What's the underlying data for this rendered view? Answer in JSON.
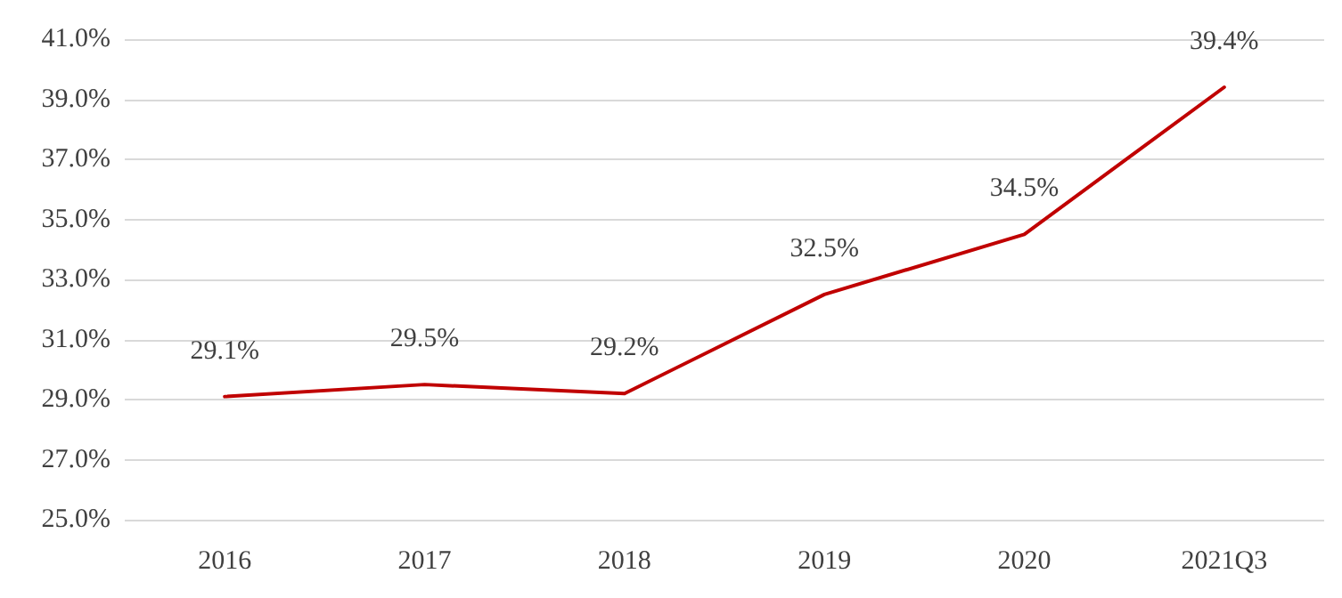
{
  "chart_data": {
    "type": "line",
    "categories": [
      "2016",
      "2017",
      "2018",
      "2019",
      "2020",
      "2021Q3"
    ],
    "series": [
      {
        "color": "#c00000",
        "values": [
          29.1,
          29.5,
          29.2,
          32.5,
          34.5,
          39.4
        ],
        "value_labels": [
          "29.1%",
          "29.5%",
          "29.2%",
          "32.5%",
          "34.5%",
          "39.4%"
        ]
      }
    ],
    "ylim": [
      25,
      41
    ],
    "yticks": [
      {
        "value": 25,
        "label": "25.0%"
      },
      {
        "value": 27,
        "label": "27.0%"
      },
      {
        "value": 29,
        "label": "29.0%"
      },
      {
        "value": 31,
        "label": "31.0%"
      },
      {
        "value": 33,
        "label": "33.0%"
      },
      {
        "value": 35,
        "label": "35.0%"
      },
      {
        "value": 37,
        "label": "37.0%"
      },
      {
        "value": 39,
        "label": "39.0%"
      },
      {
        "value": 41,
        "label": "41.0%"
      }
    ],
    "grid": "y",
    "marker": "none",
    "line_style": "solid"
  }
}
